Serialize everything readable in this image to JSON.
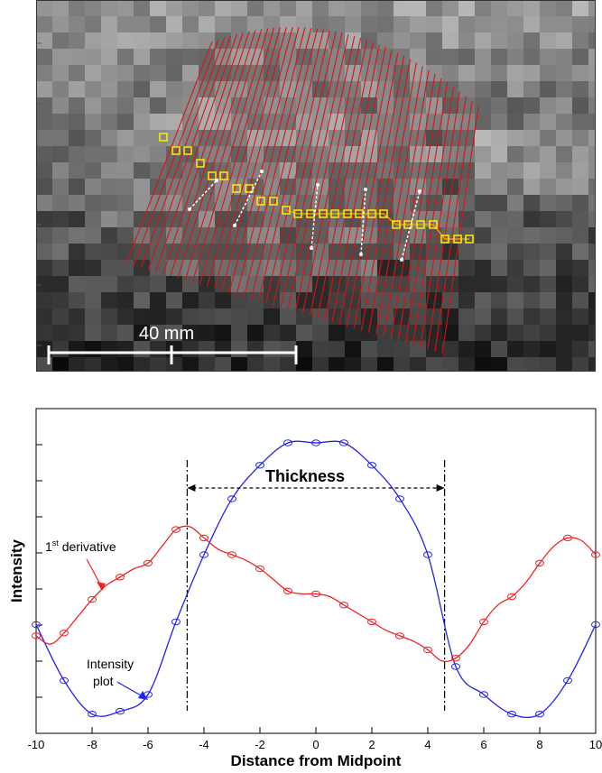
{
  "image_panel": {
    "scale_label": "40 mm"
  },
  "chart_data": {
    "type": "line",
    "title": "",
    "xlabel": "Distance from Midpoint",
    "ylabel": "Intensity",
    "xlim": [
      -10,
      10
    ],
    "ylim": [
      0,
      1
    ],
    "xticks": [
      -10,
      -8,
      -6,
      -4,
      -2,
      0,
      2,
      4,
      6,
      8,
      10
    ],
    "grid": false,
    "y_tick_labels_shown": false,
    "series": [
      {
        "name": "Intensity plot",
        "color": "#2222ee",
        "marker": "circle",
        "x": [
          -10,
          -9,
          -8,
          -7,
          -6,
          -5,
          -4,
          -3,
          -2,
          -1,
          0,
          1,
          2,
          3,
          4,
          5,
          6,
          7,
          8,
          9,
          10
        ],
        "y": [
          0.35,
          0.15,
          0.03,
          0.04,
          0.1,
          0.36,
          0.6,
          0.8,
          0.92,
          1.0,
          1.0,
          1.0,
          0.92,
          0.8,
          0.6,
          0.2,
          0.1,
          0.03,
          0.03,
          0.15,
          0.35
        ]
      },
      {
        "name": "1st derivative",
        "color": "#ee2222",
        "marker": "circle",
        "x": [
          -10,
          -9.5,
          -9,
          -8.5,
          -8,
          -7.5,
          -7,
          -6.5,
          -6,
          -5.5,
          -5,
          -4.5,
          -4,
          -3.5,
          -3,
          -2.5,
          -2,
          -1.5,
          -1,
          -0.5,
          0,
          0.5,
          1,
          1.5,
          2,
          2.5,
          3,
          3.5,
          4,
          4.5,
          5,
          5.5,
          6,
          6.5,
          7,
          7.5,
          8,
          8.5,
          9,
          9.5,
          10
        ],
        "y": [
          0.31,
          0.28,
          0.32,
          0.38,
          0.44,
          0.49,
          0.52,
          0.55,
          0.57,
          0.63,
          0.69,
          0.7,
          0.66,
          0.62,
          0.6,
          0.58,
          0.55,
          0.51,
          0.47,
          0.46,
          0.46,
          0.45,
          0.42,
          0.39,
          0.36,
          0.33,
          0.31,
          0.29,
          0.26,
          0.22,
          0.23,
          0.28,
          0.36,
          0.42,
          0.45,
          0.5,
          0.57,
          0.63,
          0.66,
          0.65,
          0.6
        ]
      }
    ],
    "annotations": [
      {
        "text": "Thickness",
        "type": "double-arrow",
        "from_x": -4.6,
        "to_x": 4.6
      },
      {
        "text": "1st derivative",
        "base": "1",
        "superscript": "st",
        "rest": " derivative",
        "target": "1st derivative"
      },
      {
        "text": "Intensity plot",
        "line1": "Intensity",
        "line2": "plot",
        "target": "Intensity plot"
      }
    ],
    "vertical_markers_x": [
      -4.6,
      4.6
    ]
  }
}
